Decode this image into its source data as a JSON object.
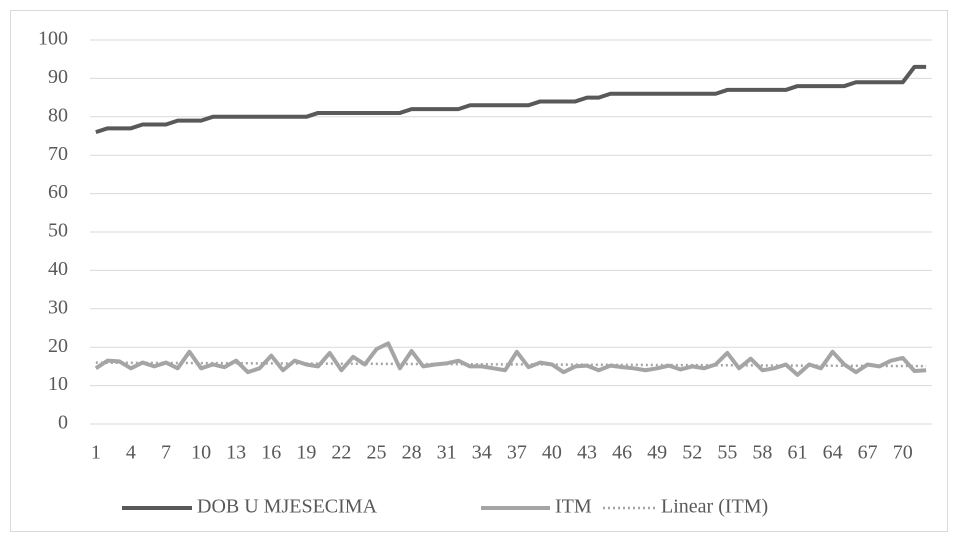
{
  "chart_data": {
    "type": "line",
    "categories": [
      1,
      null,
      null,
      4,
      null,
      null,
      7,
      null,
      null,
      10,
      null,
      null,
      13,
      null,
      null,
      16,
      null,
      null,
      19,
      null,
      null,
      22,
      null,
      null,
      25,
      null,
      null,
      28,
      null,
      null,
      31,
      null,
      null,
      34,
      null,
      null,
      37,
      null,
      null,
      40,
      null,
      null,
      43,
      null,
      null,
      46,
      null,
      null,
      49,
      null,
      null,
      52,
      null,
      null,
      55,
      null,
      null,
      58,
      null,
      null,
      61,
      null,
      null,
      64,
      null,
      null,
      67,
      null,
      null,
      70,
      null,
      null
    ],
    "series": [
      {
        "name": "DOB U MJESECIMA",
        "color": "#595959",
        "values": [
          76,
          77,
          77,
          77,
          78,
          78,
          78,
          79,
          79,
          79,
          80,
          80,
          80,
          80,
          80,
          80,
          80,
          80,
          80,
          81,
          81,
          81,
          81,
          81,
          81,
          81,
          81,
          82,
          82,
          82,
          82,
          82,
          83,
          83,
          83,
          83,
          83,
          83,
          84,
          84,
          84,
          84,
          85,
          85,
          86,
          86,
          86,
          86,
          86,
          86,
          86,
          86,
          86,
          86,
          87,
          87,
          87,
          87,
          87,
          87,
          88,
          88,
          88,
          88,
          88,
          89,
          89,
          89,
          89,
          89,
          93,
          93
        ]
      },
      {
        "name": "ITM",
        "color": "#a5a5a5",
        "values": [
          14.5,
          16.5,
          16.3,
          14.5,
          16,
          15,
          16,
          14.5,
          18.8,
          14.5,
          15.5,
          14.8,
          16.5,
          13.5,
          14.5,
          17.8,
          14,
          16.5,
          15.5,
          15,
          18.5,
          14,
          17.5,
          15.5,
          19.5,
          21,
          14.5,
          19,
          15,
          15.5,
          15.8,
          16.5,
          15,
          15,
          14.5,
          14,
          18.8,
          14.8,
          16,
          15.5,
          13.5,
          15,
          15.2,
          14,
          15.2,
          14.8,
          14.5,
          14,
          14.5,
          15.2,
          14.2,
          15,
          14.5,
          15.5,
          18.5,
          14.5,
          17,
          14,
          14.5,
          15.5,
          12.8,
          15.5,
          14.5,
          18.8,
          15.5,
          13.5,
          15.5,
          15,
          16.5,
          17.2,
          13.8,
          14
        ]
      }
    ],
    "trendline": {
      "name": "Linear (ITM)",
      "color": "#a5a5a5"
    },
    "ylim": [
      0,
      100
    ],
    "yticks": [
      0,
      10,
      20,
      30,
      40,
      50,
      60,
      70,
      80,
      90,
      100
    ],
    "grid": true
  }
}
